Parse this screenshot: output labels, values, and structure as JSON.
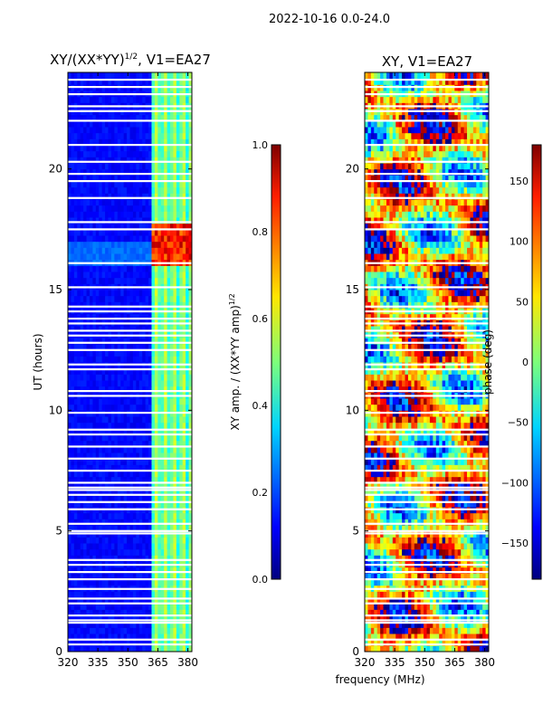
{
  "suptitle": "2022-10-16 0.0-24.0",
  "chart_data": [
    {
      "type": "heatmap",
      "title": "XY/(XX*YY)",
      "title_exponent": "1/2",
      "title_suffix": ", V1=EA27",
      "xlabel": "",
      "ylabel": "UT (hours)",
      "xlim": [
        320,
        382
      ],
      "ylim": [
        0,
        24
      ],
      "xticks": [
        "320",
        "335",
        "350",
        "365",
        "380"
      ],
      "xtick_values": [
        320,
        335,
        350,
        365,
        380
      ],
      "yticks": [
        "0",
        "5",
        "10",
        "15",
        "20"
      ],
      "ytick_values": [
        0,
        5,
        10,
        15,
        20
      ],
      "colorbar": {
        "label": "XY amp. / (XX*YY amp)",
        "label_exponent": "1/2",
        "range": [
          0.0,
          1.0
        ],
        "ticks": [
          "0.0",
          "0.2",
          "0.4",
          "0.6",
          "0.8",
          "1.0"
        ],
        "tick_values": [
          0.0,
          0.2,
          0.4,
          0.6,
          0.8,
          1.0
        ]
      },
      "bright_band_MHz": [
        362,
        382
      ],
      "peak_hours": [
        16.0,
        17.7
      ]
    },
    {
      "type": "heatmap",
      "title": "XY, V1=EA27",
      "xlabel": "frequency (MHz)",
      "ylabel": "",
      "xlim": [
        320,
        382
      ],
      "ylim": [
        0,
        24
      ],
      "xticks": [
        "320",
        "335",
        "350",
        "365",
        "380"
      ],
      "xtick_values": [
        320,
        335,
        350,
        365,
        380
      ],
      "yticks": [
        "0",
        "5",
        "10",
        "15",
        "20"
      ],
      "ytick_values": [
        0,
        5,
        10,
        15,
        20
      ],
      "colorbar": {
        "label": "phase (deg)",
        "range": [
          -180,
          180
        ],
        "ticks": [
          "−150",
          "−100",
          "−50",
          "0",
          "50",
          "100",
          "150"
        ],
        "tick_values": [
          -150,
          -100,
          -50,
          0,
          50,
          100,
          150
        ]
      }
    }
  ],
  "gap_hours": [
    0.3,
    0.5,
    1.2,
    1.3,
    1.5,
    2.0,
    2.2,
    2.6,
    3.0,
    3.3,
    3.6,
    3.8,
    4.9,
    5.0,
    5.3,
    5.9,
    6.2,
    6.5,
    6.7,
    6.8,
    7.0,
    7.5,
    8.0,
    8.5,
    9.0,
    9.2,
    9.9,
    10.6,
    10.8,
    11.7,
    11.9,
    12.5,
    12.8,
    13.1,
    13.3,
    13.6,
    13.8,
    14.1,
    14.3,
    15.1,
    16.1,
    17.5,
    17.8,
    18.8,
    19.5,
    19.8,
    20.3,
    21.0,
    22.0,
    22.4,
    22.6,
    23.1,
    23.4,
    23.7
  ]
}
